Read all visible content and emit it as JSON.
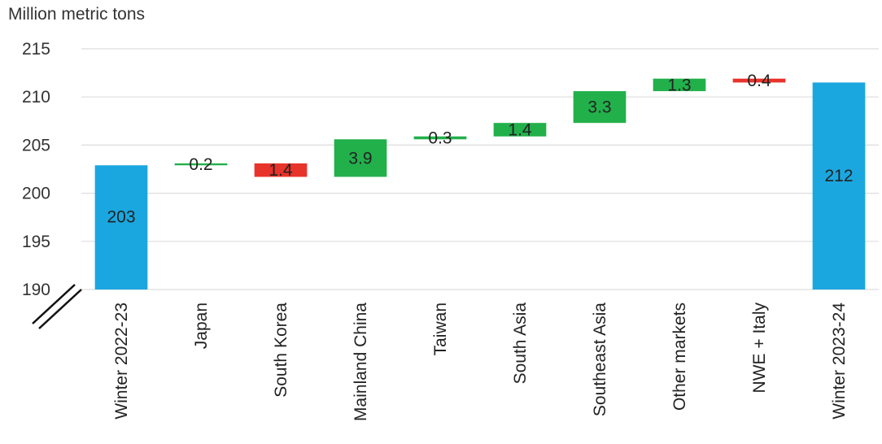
{
  "chart_data": {
    "type": "bar",
    "subtype": "waterfall",
    "title": "",
    "ylabel": "Million metric tons",
    "xlabel": "",
    "ylim": [
      190,
      215
    ],
    "yticks": [
      190,
      195,
      200,
      205,
      210,
      215
    ],
    "grid": true,
    "axis_break": true,
    "categories": [
      "Winter 2022-23",
      "Japan",
      "South Korea",
      "Mainland China",
      "Taiwan",
      "South Asia",
      "Southeast Asia",
      "Other markets",
      "NWE + Italy",
      "Winter 2023-24"
    ],
    "steps": [
      {
        "category": "Winter 2022-23",
        "kind": "total",
        "start": 190,
        "end": 202.9,
        "label": "203"
      },
      {
        "category": "Japan",
        "kind": "increase",
        "start": 202.9,
        "end": 203.1,
        "label": "0.2"
      },
      {
        "category": "South Korea",
        "kind": "decrease",
        "start": 203.1,
        "end": 201.7,
        "label": "1.4"
      },
      {
        "category": "Mainland China",
        "kind": "increase",
        "start": 201.7,
        "end": 205.6,
        "label": "3.9"
      },
      {
        "category": "Taiwan",
        "kind": "increase",
        "start": 205.6,
        "end": 205.9,
        "label": "0.3"
      },
      {
        "category": "South Asia",
        "kind": "increase",
        "start": 205.9,
        "end": 207.3,
        "label": "1.4"
      },
      {
        "category": "Southeast Asia",
        "kind": "increase",
        "start": 207.3,
        "end": 210.6,
        "label": "3.3"
      },
      {
        "category": "Other markets",
        "kind": "increase",
        "start": 210.6,
        "end": 211.9,
        "label": "1.3"
      },
      {
        "category": "NWE + Italy",
        "kind": "decrease",
        "start": 211.9,
        "end": 211.5,
        "label": "0.4"
      },
      {
        "category": "Winter 2023-24",
        "kind": "total",
        "start": 190,
        "end": 211.5,
        "label": "212"
      }
    ],
    "colors": {
      "total": "#1aa7e0",
      "increase": "#22b04b",
      "decrease": "#e8332a",
      "grid": "#dddddd"
    }
  }
}
